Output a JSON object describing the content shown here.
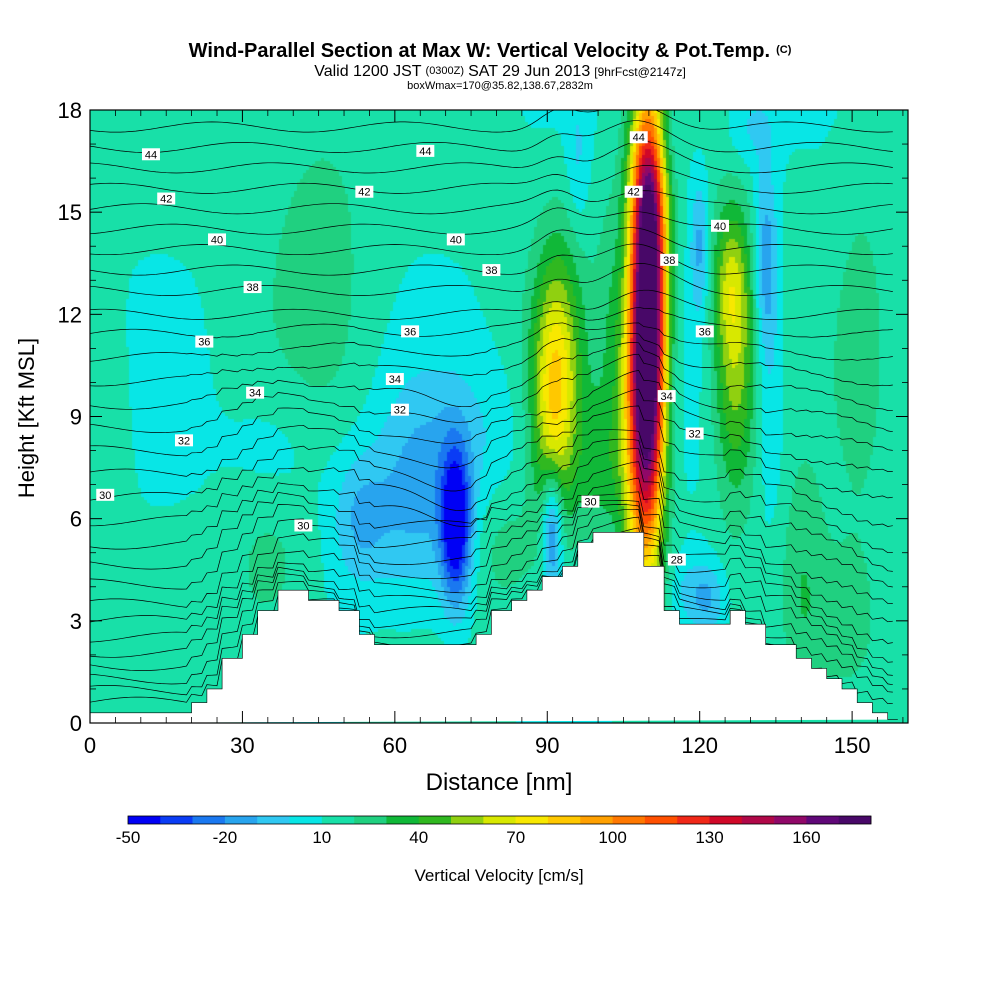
{
  "chart_data": {
    "type": "heatmap",
    "title": "Wind-Parallel Section at Max W: Vertical Velocity & Pot.Temp.",
    "title_mark": "(C)",
    "subtitle_parts": [
      "Valid 1200 JST",
      "(0300Z)",
      "SAT 29 Jun 2013",
      "[9hrFcst@2147z]"
    ],
    "subtitle2": "boxWmax=170@35.82,138.67,2832m",
    "xlabel": "Distance [nm]",
    "ylabel": "Height [Kft MSL]",
    "xlim": [
      0,
      161
    ],
    "ylim": [
      0,
      18
    ],
    "xticks": [
      0,
      30,
      60,
      90,
      120,
      150
    ],
    "yticks": [
      0,
      3,
      6,
      9,
      12,
      15,
      18
    ],
    "grid": false,
    "colorbar": {
      "label": "Vertical Velocity [cm/s]",
      "tick_labels": [
        "-50",
        "-20",
        "10",
        "40",
        "70",
        "100",
        "130",
        "160"
      ],
      "tick_values": [
        -50,
        -20,
        10,
        40,
        70,
        100,
        130,
        160
      ],
      "range": [
        -50,
        180
      ],
      "step": 10,
      "colors": [
        "#0000f5",
        "#0a3cf5",
        "#1a78f0",
        "#28a4ee",
        "#30c8f2",
        "#08e6e6",
        "#18e0a8",
        "#20d080",
        "#10b838",
        "#30b820",
        "#90d010",
        "#d8e800",
        "#f8e800",
        "#ffc800",
        "#ffa000",
        "#ff7800",
        "#ff5000",
        "#f02818",
        "#d00828",
        "#b00848",
        "#900868",
        "#600878",
        "#480868"
      ]
    },
    "terrain_profile": {
      "x": [
        0,
        20,
        20,
        23,
        23,
        26,
        26,
        30,
        30,
        33,
        33,
        37,
        37,
        43,
        43,
        49,
        49,
        53,
        53,
        56,
        56,
        76,
        76,
        79,
        79,
        83,
        83,
        86,
        86,
        89,
        89,
        93,
        93,
        96,
        96,
        99,
        99,
        103,
        103,
        109,
        109,
        113,
        113,
        116,
        116,
        126,
        126,
        129,
        129,
        133,
        133,
        139,
        139,
        142,
        142,
        145,
        145,
        148,
        148,
        151,
        151,
        154,
        154,
        157,
        157,
        159,
        159,
        161
      ],
      "y": [
        0.3,
        0.3,
        0.6,
        0.6,
        1.0,
        1.0,
        1.9,
        1.9,
        2.6,
        2.6,
        3.3,
        3.3,
        3.9,
        3.9,
        3.6,
        3.6,
        3.3,
        3.3,
        2.6,
        2.6,
        2.3,
        2.3,
        2.6,
        2.6,
        3.3,
        3.3,
        3.6,
        3.6,
        3.9,
        3.9,
        4.3,
        4.3,
        4.6,
        4.6,
        5.3,
        5.3,
        5.6,
        5.6,
        5.6,
        5.6,
        4.6,
        4.6,
        3.3,
        3.3,
        2.9,
        2.9,
        3.3,
        3.3,
        2.9,
        2.9,
        2.3,
        2.3,
        1.9,
        1.9,
        1.6,
        1.6,
        1.3,
        1.3,
        1.0,
        1.0,
        0.6,
        0.6,
        0.3,
        0.3,
        0.1,
        0.1
      ]
    },
    "cells": [
      {
        "x": 110,
        "y": 12.0,
        "sx": 2.3,
        "sy": 4.2,
        "w": 175
      },
      {
        "x": 108,
        "y": 9.0,
        "sx": 2.8,
        "sy": 3.5,
        "w": 70
      },
      {
        "x": 110,
        "y": 16.0,
        "sx": 2.8,
        "sy": 1.8,
        "w": 45
      },
      {
        "x": 92,
        "y": 10.5,
        "sx": 3.5,
        "sy": 2.6,
        "w": 50
      },
      {
        "x": 91,
        "y": 8.0,
        "sx": 2.5,
        "sy": 2.5,
        "w": 30
      },
      {
        "x": 127,
        "y": 10.5,
        "sx": 3.0,
        "sy": 2.8,
        "w": 45
      },
      {
        "x": 126,
        "y": 13.0,
        "sx": 2.5,
        "sy": 1.5,
        "w": 30
      },
      {
        "x": 72,
        "y": 5.8,
        "sx": 2.1,
        "sy": 1.6,
        "w": -65
      },
      {
        "x": 91,
        "y": 5.8,
        "sx": 1.5,
        "sy": 1.4,
        "w": -55
      },
      {
        "x": 64,
        "y": 6.5,
        "sx": 6,
        "sy": 2.2,
        "w": -22
      },
      {
        "x": 53,
        "y": 6.0,
        "sx": 4,
        "sy": 1.4,
        "w": -22
      },
      {
        "x": 75,
        "y": 8.5,
        "sx": 8,
        "sy": 1.5,
        "w": -10
      },
      {
        "x": 38,
        "y": 8.0,
        "sx": 7,
        "sy": 1.6,
        "w": -10
      },
      {
        "x": 120,
        "y": 14.0,
        "sx": 1.3,
        "sy": 1.5,
        "w": -25
      },
      {
        "x": 133,
        "y": 13.5,
        "sx": 1.6,
        "sy": 2.0,
        "w": -30
      },
      {
        "x": 112,
        "y": 17.0,
        "sx": 3,
        "sy": 1.2,
        "w": -20
      },
      {
        "x": 130,
        "y": 17.5,
        "sx": 3.5,
        "sy": 0.9,
        "w": -15
      },
      {
        "x": 96,
        "y": 16.5,
        "sx": 1.5,
        "sy": 1.5,
        "w": -12
      },
      {
        "x": 134,
        "y": 9.0,
        "sx": 2,
        "sy": 2.5,
        "w": -10
      },
      {
        "x": 122,
        "y": 3.6,
        "sx": 2.5,
        "sy": 0.8,
        "w": -20
      },
      {
        "x": 118,
        "y": 3.8,
        "sx": 3,
        "sy": 0.8,
        "w": -15
      },
      {
        "x": 35,
        "y": 4.5,
        "sx": 5,
        "sy": 1.6,
        "w": 12
      },
      {
        "x": 45,
        "y": 14.0,
        "sx": 7,
        "sy": 4,
        "w": 12
      },
      {
        "x": 82,
        "y": 5.0,
        "sx": 4,
        "sy": 1.2,
        "w": 12
      },
      {
        "x": 100,
        "y": 7.5,
        "sx": 3,
        "sy": 1.5,
        "w": 18
      },
      {
        "x": 148,
        "y": 2.5,
        "sx": 6,
        "sy": 2,
        "w": 14
      },
      {
        "x": 140,
        "y": 4.0,
        "sx": 3,
        "sy": 2.5,
        "w": 15
      },
      {
        "x": 152,
        "y": 12,
        "sx": 4,
        "sy": 5,
        "w": 8
      },
      {
        "x": 3,
        "y": 8.5,
        "sx": 3,
        "sy": 2.5,
        "w": 8
      },
      {
        "x": 102,
        "y": 12.0,
        "sx": 2,
        "sy": 3,
        "w": 10
      }
    ],
    "isentrope_heights_kft": [
      0.35,
      0.7,
      1.05,
      1.45,
      1.85,
      2.3,
      2.8,
      3.3,
      3.9,
      4.5,
      5.1,
      5.8,
      6.5,
      7.2,
      7.9,
      8.6,
      9.3,
      10.0,
      10.7,
      11.4,
      12.0,
      12.7,
      13.3,
      13.9,
      14.5,
      15.1,
      15.7,
      16.3,
      16.9,
      17.5
    ],
    "isentrope_labels": [
      {
        "x": 3,
        "y": 6.7,
        "text": "30"
      },
      {
        "x": 18.5,
        "y": 8.3,
        "text": "32"
      },
      {
        "x": 32.5,
        "y": 9.7,
        "text": "34"
      },
      {
        "x": 22.5,
        "y": 11.2,
        "text": "36"
      },
      {
        "x": 32,
        "y": 12.8,
        "text": "38"
      },
      {
        "x": 25,
        "y": 14.2,
        "text": "40"
      },
      {
        "x": 15,
        "y": 15.4,
        "text": "42"
      },
      {
        "x": 12,
        "y": 16.7,
        "text": "44"
      },
      {
        "x": 42,
        "y": 5.8,
        "text": "30"
      },
      {
        "x": 61,
        "y": 9.2,
        "text": "32"
      },
      {
        "x": 60,
        "y": 10.1,
        "text": "34"
      },
      {
        "x": 63,
        "y": 11.5,
        "text": "36"
      },
      {
        "x": 79,
        "y": 13.3,
        "text": "38"
      },
      {
        "x": 72,
        "y": 14.2,
        "text": "40"
      },
      {
        "x": 54,
        "y": 15.6,
        "text": "42"
      },
      {
        "x": 66,
        "y": 16.8,
        "text": "44"
      },
      {
        "x": 98.5,
        "y": 6.5,
        "text": "30"
      },
      {
        "x": 108,
        "y": 17.2,
        "text": "44"
      },
      {
        "x": 107,
        "y": 15.6,
        "text": "42"
      },
      {
        "x": 114,
        "y": 13.6,
        "text": "38"
      },
      {
        "x": 113.5,
        "y": 9.6,
        "text": "34"
      },
      {
        "x": 115.5,
        "y": 4.8,
        "text": "28"
      },
      {
        "x": 119,
        "y": 8.5,
        "text": "32"
      },
      {
        "x": 121,
        "y": 11.5,
        "text": "36"
      },
      {
        "x": 124,
        "y": 14.6,
        "text": "40"
      }
    ]
  }
}
